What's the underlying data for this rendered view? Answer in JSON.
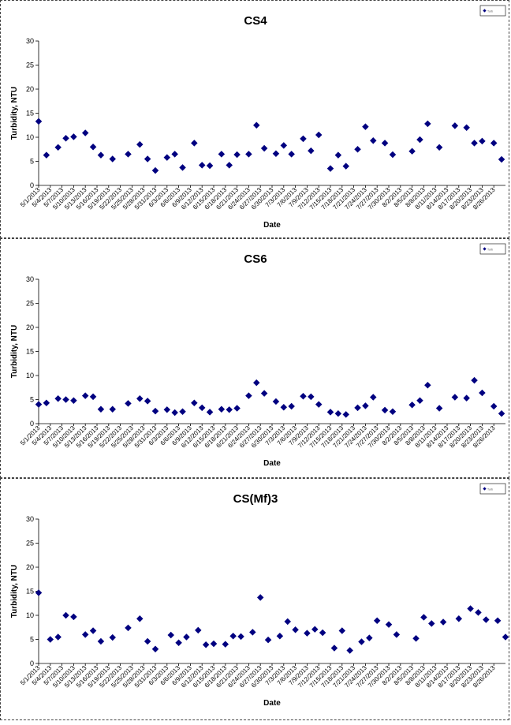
{
  "charts": [
    {
      "type": "scatter",
      "title": "CS4",
      "xlabel": "Date",
      "ylabel": "Turbidity, NTU",
      "ylim": [
        0,
        30
      ],
      "yticks": [
        0,
        5,
        10,
        15,
        20,
        25,
        30
      ],
      "xtick_labels": [
        "5/1/2013",
        "5/4/2013",
        "5/7/2013",
        "5/10/2013",
        "5/13/2013",
        "5/16/2013",
        "5/19/2013",
        "5/22/2013",
        "5/25/2013",
        "5/28/2013",
        "5/31/2013",
        "6/3/2013",
        "6/6/2013",
        "6/9/2013",
        "6/12/2013",
        "6/15/2013",
        "6/18/2013",
        "6/21/2013",
        "6/24/2013",
        "6/27/2013",
        "6/30/2013",
        "7/3/2013",
        "7/6/2013",
        "7/9/2013",
        "7/12/2013",
        "7/15/2013",
        "7/18/2013",
        "7/21/2013",
        "7/24/2013",
        "7/27/2013",
        "7/30/2013",
        "8/2/2013",
        "8/5/2013",
        "8/8/2013",
        "8/11/2013",
        "8/14/2013",
        "8/17/2013",
        "8/20/2013",
        "8/23/2013",
        "8/26/2013"
      ],
      "legend": "Turb",
      "legend_position": "top-right",
      "marker_color": "#000080",
      "points": [
        {
          "x": "5/1/2013",
          "y": 13.3
        },
        {
          "x": "5/3/2013",
          "y": 6.3
        },
        {
          "x": "5/6/2013",
          "y": 7.9
        },
        {
          "x": "5/8/2013",
          "y": 9.8
        },
        {
          "x": "5/10/2013",
          "y": 10.1
        },
        {
          "x": "5/13/2013",
          "y": 10.9
        },
        {
          "x": "5/15/2013",
          "y": 8.0
        },
        {
          "x": "5/17/2013",
          "y": 6.3
        },
        {
          "x": "5/20/2013",
          "y": 5.5
        },
        {
          "x": "5/24/2013",
          "y": 6.5
        },
        {
          "x": "5/27/2013",
          "y": 8.5
        },
        {
          "x": "5/29/2013",
          "y": 5.5
        },
        {
          "x": "5/31/2013",
          "y": 3.1
        },
        {
          "x": "6/3/2013",
          "y": 5.8
        },
        {
          "x": "6/5/2013",
          "y": 6.5
        },
        {
          "x": "6/7/2013",
          "y": 3.7
        },
        {
          "x": "6/10/2013",
          "y": 8.8
        },
        {
          "x": "6/12/2013",
          "y": 4.2
        },
        {
          "x": "6/14/2013",
          "y": 4.1
        },
        {
          "x": "6/17/2013",
          "y": 6.5
        },
        {
          "x": "6/19/2013",
          "y": 4.2
        },
        {
          "x": "6/21/2013",
          "y": 6.4
        },
        {
          "x": "6/24/2013",
          "y": 6.5
        },
        {
          "x": "6/26/2013",
          "y": 12.5
        },
        {
          "x": "6/28/2013",
          "y": 7.7
        },
        {
          "x": "7/1/2013",
          "y": 6.6
        },
        {
          "x": "7/3/2013",
          "y": 8.3
        },
        {
          "x": "7/5/2013",
          "y": 6.5
        },
        {
          "x": "7/8/2013",
          "y": 9.7
        },
        {
          "x": "7/10/2013",
          "y": 7.2
        },
        {
          "x": "7/12/2013",
          "y": 10.5
        },
        {
          "x": "7/15/2013",
          "y": 3.5
        },
        {
          "x": "7/17/2013",
          "y": 6.3
        },
        {
          "x": "7/19/2013",
          "y": 4.0
        },
        {
          "x": "7/22/2013",
          "y": 7.5
        },
        {
          "x": "7/24/2013",
          "y": 12.2
        },
        {
          "x": "7/26/2013",
          "y": 9.3
        },
        {
          "x": "7/29/2013",
          "y": 8.8
        },
        {
          "x": "7/31/2013",
          "y": 6.4
        },
        {
          "x": "8/5/2013",
          "y": 7.1
        },
        {
          "x": "8/7/2013",
          "y": 9.5
        },
        {
          "x": "8/9/2013",
          "y": 12.8
        },
        {
          "x": "8/12/2013",
          "y": 7.9
        },
        {
          "x": "8/16/2013",
          "y": 12.4
        },
        {
          "x": "8/19/2013",
          "y": 12.0
        },
        {
          "x": "8/21/2013",
          "y": 8.8
        },
        {
          "x": "8/23/2013",
          "y": 9.2
        },
        {
          "x": "8/26/2013",
          "y": 8.8
        },
        {
          "x": "8/28/2013",
          "y": 5.4
        }
      ]
    },
    {
      "type": "scatter",
      "title": "CS6",
      "xlabel": "Date",
      "ylabel": "Turbidity, NTU",
      "ylim": [
        0,
        30
      ],
      "yticks": [
        0,
        5,
        10,
        15,
        20,
        25,
        30
      ],
      "xtick_labels": [
        "5/1/2013",
        "5/4/2013",
        "5/7/2013",
        "5/10/2013",
        "5/13/2013",
        "5/16/2013",
        "5/19/2013",
        "5/22/2013",
        "5/25/2013",
        "5/28/2013",
        "5/31/2013",
        "6/3/2013",
        "6/6/2013",
        "6/9/2013",
        "6/12/2013",
        "6/15/2013",
        "6/18/2013",
        "6/21/2013",
        "6/24/2013",
        "6/27/2013",
        "6/30/2013",
        "7/3/2013",
        "7/6/2013",
        "7/9/2013",
        "7/12/2013",
        "7/15/2013",
        "7/18/2013",
        "7/21/2013",
        "7/24/2013",
        "7/27/2013",
        "7/30/2013",
        "8/2/2013",
        "8/5/2013",
        "8/8/2013",
        "8/11/2013",
        "8/14/2013",
        "8/17/2013",
        "8/20/2013",
        "8/23/2013",
        "8/26/2013"
      ],
      "legend": "Turb",
      "legend_position": "top-right",
      "marker_color": "#000080",
      "points": [
        {
          "x": "5/1/2013",
          "y": 4.0
        },
        {
          "x": "5/3/2013",
          "y": 4.3
        },
        {
          "x": "5/6/2013",
          "y": 5.2
        },
        {
          "x": "5/8/2013",
          "y": 5.0
        },
        {
          "x": "5/10/2013",
          "y": 4.8
        },
        {
          "x": "5/13/2013",
          "y": 5.8
        },
        {
          "x": "5/15/2013",
          "y": 5.6
        },
        {
          "x": "5/17/2013",
          "y": 3.0
        },
        {
          "x": "5/20/2013",
          "y": 3.0
        },
        {
          "x": "5/24/2013",
          "y": 4.2
        },
        {
          "x": "5/27/2013",
          "y": 5.2
        },
        {
          "x": "5/29/2013",
          "y": 4.7
        },
        {
          "x": "5/31/2013",
          "y": 2.6
        },
        {
          "x": "6/3/2013",
          "y": 2.9
        },
        {
          "x": "6/5/2013",
          "y": 2.3
        },
        {
          "x": "6/7/2013",
          "y": 2.5
        },
        {
          "x": "6/10/2013",
          "y": 4.3
        },
        {
          "x": "6/12/2013",
          "y": 3.3
        },
        {
          "x": "6/14/2013",
          "y": 2.4
        },
        {
          "x": "6/17/2013",
          "y": 3.0
        },
        {
          "x": "6/19/2013",
          "y": 2.9
        },
        {
          "x": "6/21/2013",
          "y": 3.2
        },
        {
          "x": "6/24/2013",
          "y": 5.8
        },
        {
          "x": "6/26/2013",
          "y": 8.5
        },
        {
          "x": "6/28/2013",
          "y": 6.3
        },
        {
          "x": "7/1/2013",
          "y": 4.6
        },
        {
          "x": "7/3/2013",
          "y": 3.4
        },
        {
          "x": "7/5/2013",
          "y": 3.6
        },
        {
          "x": "7/8/2013",
          "y": 5.7
        },
        {
          "x": "7/10/2013",
          "y": 5.6
        },
        {
          "x": "7/12/2013",
          "y": 4.0
        },
        {
          "x": "7/15/2013",
          "y": 2.4
        },
        {
          "x": "7/17/2013",
          "y": 2.1
        },
        {
          "x": "7/19/2013",
          "y": 1.9
        },
        {
          "x": "7/22/2013",
          "y": 3.3
        },
        {
          "x": "7/24/2013",
          "y": 3.7
        },
        {
          "x": "7/26/2013",
          "y": 5.5
        },
        {
          "x": "7/29/2013",
          "y": 2.8
        },
        {
          "x": "7/31/2013",
          "y": 2.5
        },
        {
          "x": "8/5/2013",
          "y": 3.9
        },
        {
          "x": "8/7/2013",
          "y": 4.8
        },
        {
          "x": "8/9/2013",
          "y": 8.0
        },
        {
          "x": "8/12/2013",
          "y": 3.2
        },
        {
          "x": "8/16/2013",
          "y": 5.5
        },
        {
          "x": "8/19/2013",
          "y": 5.3
        },
        {
          "x": "8/21/2013",
          "y": 9.0
        },
        {
          "x": "8/23/2013",
          "y": 6.4
        },
        {
          "x": "8/26/2013",
          "y": 3.6
        },
        {
          "x": "8/28/2013",
          "y": 2.1
        }
      ]
    },
    {
      "type": "scatter",
      "title": "CS(Mf)3",
      "xlabel": "Date",
      "ylabel": "Turbidity, NTU",
      "ylim": [
        0,
        30
      ],
      "yticks": [
        0,
        5,
        10,
        15,
        20,
        25,
        30
      ],
      "xtick_labels": [
        "5/1/2013",
        "5/4/2013",
        "5/7/2013",
        "5/10/2013",
        "5/13/2013",
        "5/16/2013",
        "5/19/2013",
        "5/22/2013",
        "5/25/2013",
        "5/28/2013",
        "5/31/2013",
        "6/3/2013",
        "6/6/2013",
        "6/9/2013",
        "6/12/2013",
        "6/15/2013",
        "6/18/2013",
        "6/21/2013",
        "6/24/2013",
        "6/27/2013",
        "6/30/2013",
        "7/3/2013",
        "7/6/2013",
        "7/9/2013",
        "7/12/2013",
        "7/15/2013",
        "7/18/2013",
        "7/21/2013",
        "7/24/2013",
        "7/27/2013",
        "7/30/2013",
        "8/2/2013",
        "8/5/2013",
        "8/8/2013",
        "8/11/2013",
        "8/14/2013",
        "8/17/2013",
        "8/20/2013",
        "8/23/2013",
        "8/26/2013"
      ],
      "legend": "Turb",
      "legend_position": "top-right",
      "marker_color": "#000080",
      "points": [
        {
          "x": "5/1/2013",
          "y": 14.7
        },
        {
          "x": "5/4/2013",
          "y": 5.0
        },
        {
          "x": "5/6/2013",
          "y": 5.5
        },
        {
          "x": "5/8/2013",
          "y": 10.0
        },
        {
          "x": "5/10/2013",
          "y": 9.7
        },
        {
          "x": "5/13/2013",
          "y": 6.0
        },
        {
          "x": "5/15/2013",
          "y": 6.8
        },
        {
          "x": "5/17/2013",
          "y": 4.6
        },
        {
          "x": "5/20/2013",
          "y": 5.4
        },
        {
          "x": "5/24/2013",
          "y": 7.4
        },
        {
          "x": "5/27/2013",
          "y": 9.3
        },
        {
          "x": "5/29/2013",
          "y": 4.6
        },
        {
          "x": "5/31/2013",
          "y": 3.0
        },
        {
          "x": "6/4/2013",
          "y": 5.9
        },
        {
          "x": "6/6/2013",
          "y": 4.3
        },
        {
          "x": "6/8/2013",
          "y": 5.5
        },
        {
          "x": "6/11/2013",
          "y": 6.9
        },
        {
          "x": "6/13/2013",
          "y": 3.9
        },
        {
          "x": "6/15/2013",
          "y": 4.1
        },
        {
          "x": "6/18/2013",
          "y": 4.0
        },
        {
          "x": "6/20/2013",
          "y": 5.7
        },
        {
          "x": "6/22/2013",
          "y": 5.6
        },
        {
          "x": "6/25/2013",
          "y": 6.5
        },
        {
          "x": "6/27/2013",
          "y": 13.7
        },
        {
          "x": "6/29/2013",
          "y": 4.9
        },
        {
          "x": "7/2/2013",
          "y": 5.7
        },
        {
          "x": "7/4/2013",
          "y": 8.7
        },
        {
          "x": "7/6/2013",
          "y": 7.0
        },
        {
          "x": "7/9/2013",
          "y": 6.3
        },
        {
          "x": "7/11/2013",
          "y": 7.1
        },
        {
          "x": "7/13/2013",
          "y": 6.4
        },
        {
          "x": "7/16/2013",
          "y": 3.2
        },
        {
          "x": "7/18/2013",
          "y": 6.8
        },
        {
          "x": "7/20/2013",
          "y": 2.7
        },
        {
          "x": "7/23/2013",
          "y": 4.5
        },
        {
          "x": "7/25/2013",
          "y": 5.3
        },
        {
          "x": "7/27/2013",
          "y": 8.9
        },
        {
          "x": "7/30/2013",
          "y": 8.1
        },
        {
          "x": "8/1/2013",
          "y": 6.0
        },
        {
          "x": "8/6/2013",
          "y": 5.2
        },
        {
          "x": "8/8/2013",
          "y": 9.6
        },
        {
          "x": "8/10/2013",
          "y": 8.3
        },
        {
          "x": "8/13/2013",
          "y": 8.6
        },
        {
          "x": "8/17/2013",
          "y": 9.3
        },
        {
          "x": "8/20/2013",
          "y": 11.4
        },
        {
          "x": "8/22/2013",
          "y": 10.6
        },
        {
          "x": "8/24/2013",
          "y": 9.1
        },
        {
          "x": "8/27/2013",
          "y": 8.9
        },
        {
          "x": "8/29/2013",
          "y": 5.5
        }
      ]
    }
  ]
}
